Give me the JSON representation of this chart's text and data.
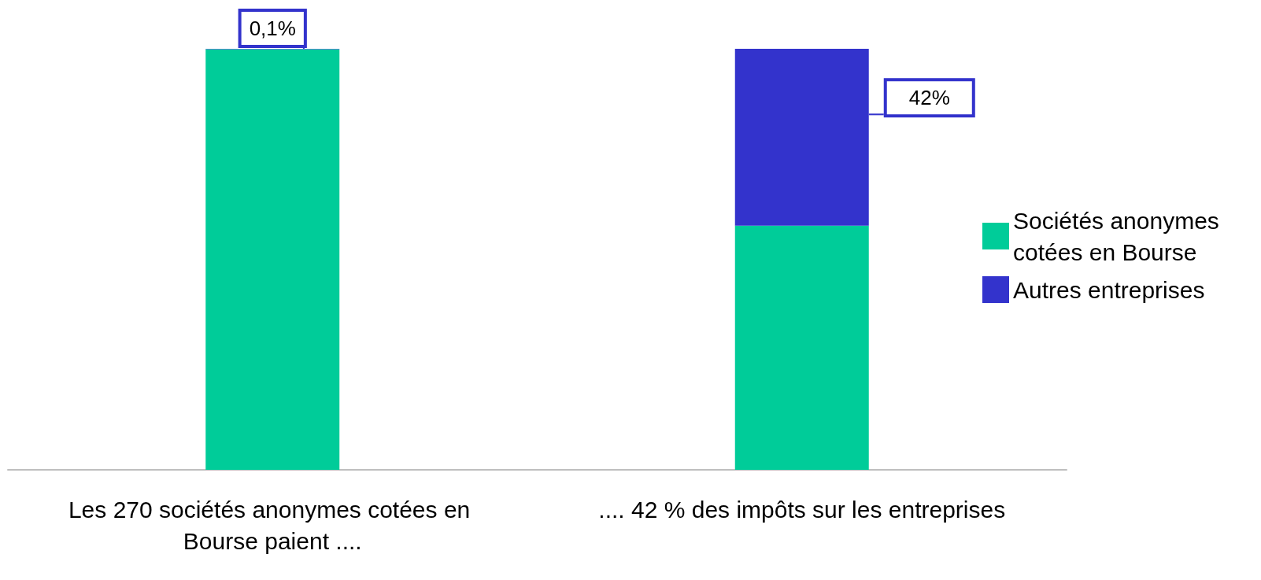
{
  "chart_data": {
    "type": "bar",
    "stacked": true,
    "categories": [
      "Les 270 sociétés anonymes cotées en Bourse paient ....",
      ".... 42 % des impôts sur les entreprises"
    ],
    "series": [
      {
        "name": "Sociétés anonymes cotées en Bourse",
        "color": "#00cc99",
        "values": [
          99.9,
          58
        ]
      },
      {
        "name": "Autres entreprises",
        "color": "#3333cc",
        "values": [
          0.1,
          42
        ],
        "value_labels": [
          "0,1%",
          "42%"
        ]
      }
    ],
    "legend": "right"
  }
}
